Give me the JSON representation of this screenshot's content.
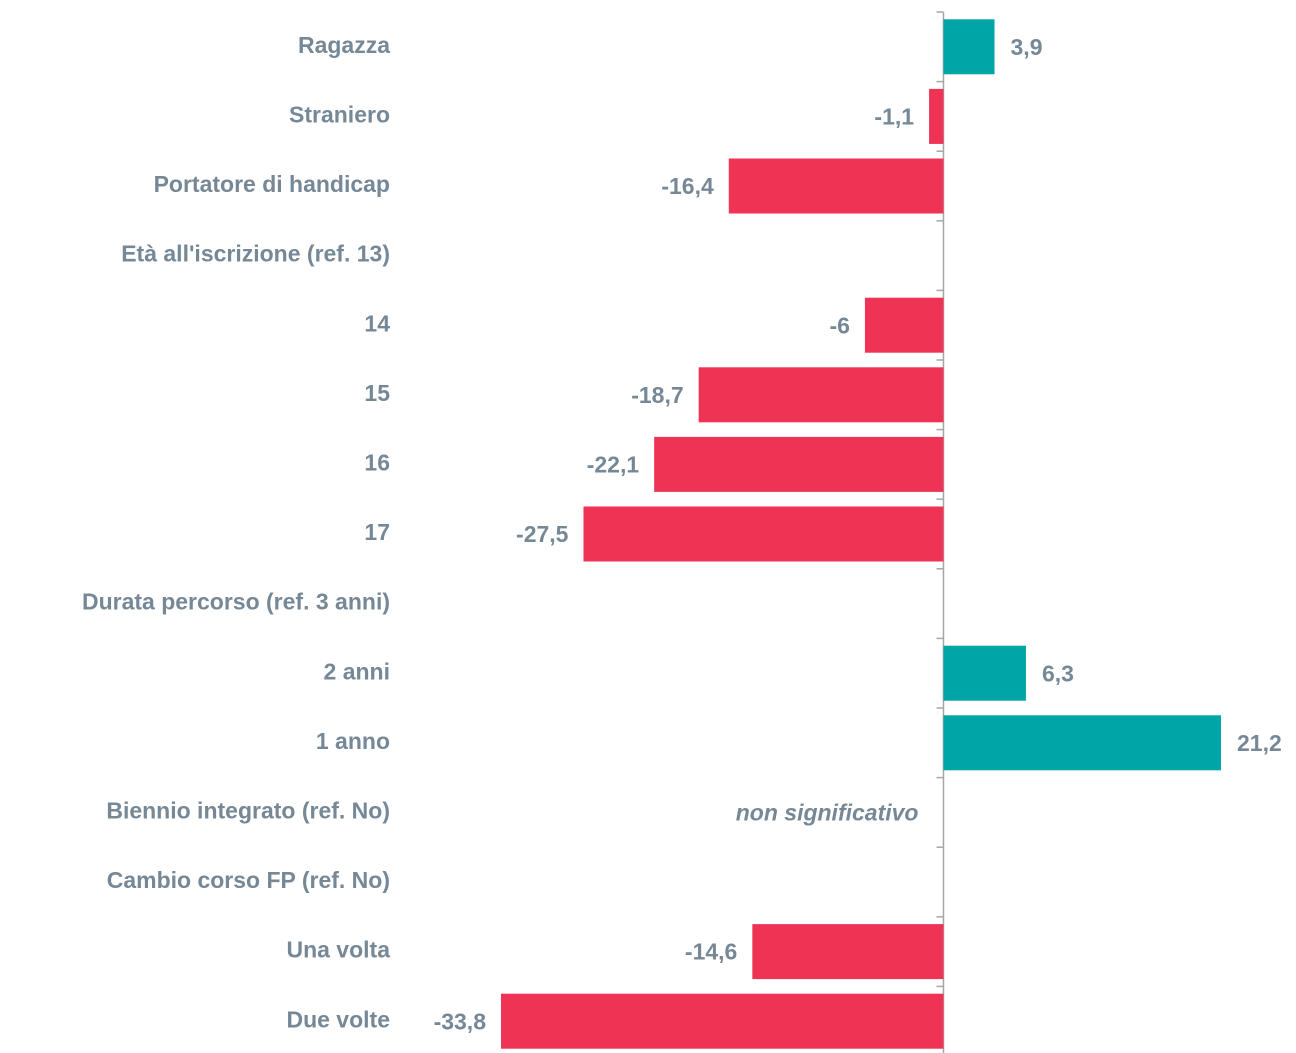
{
  "chart_data": {
    "type": "bar",
    "orientation": "horizontal",
    "categories": [
      "Ragazza",
      "Straniero",
      "Portatore di handicap",
      "Età all'iscrizione (ref. 13)",
      "14",
      "15",
      "16",
      "17",
      "Durata percorso (ref. 3 anni)",
      "2 anni",
      "1 anno",
      "Biennio integrato (ref. No)",
      "Cambio corso FP (ref. No)",
      "Una volta",
      "Due volte"
    ],
    "values": [
      3.9,
      -1.1,
      -16.4,
      null,
      -6,
      -18.7,
      -22.1,
      -27.5,
      null,
      6.3,
      21.2,
      null,
      null,
      -14.6,
      -33.8
    ],
    "value_labels": [
      "3,9",
      "-1,1",
      "-16,4",
      null,
      "-6",
      "-18,7",
      "-22,1",
      "-27,5",
      null,
      "6,3",
      "21,2",
      null,
      null,
      "-14,6",
      "-33,8"
    ],
    "positive_color": "#00a5a8",
    "negative_color": "#ee3355",
    "annotations": [
      {
        "text": "non significativo",
        "category": "Biennio integrato (ref. No)"
      }
    ]
  }
}
